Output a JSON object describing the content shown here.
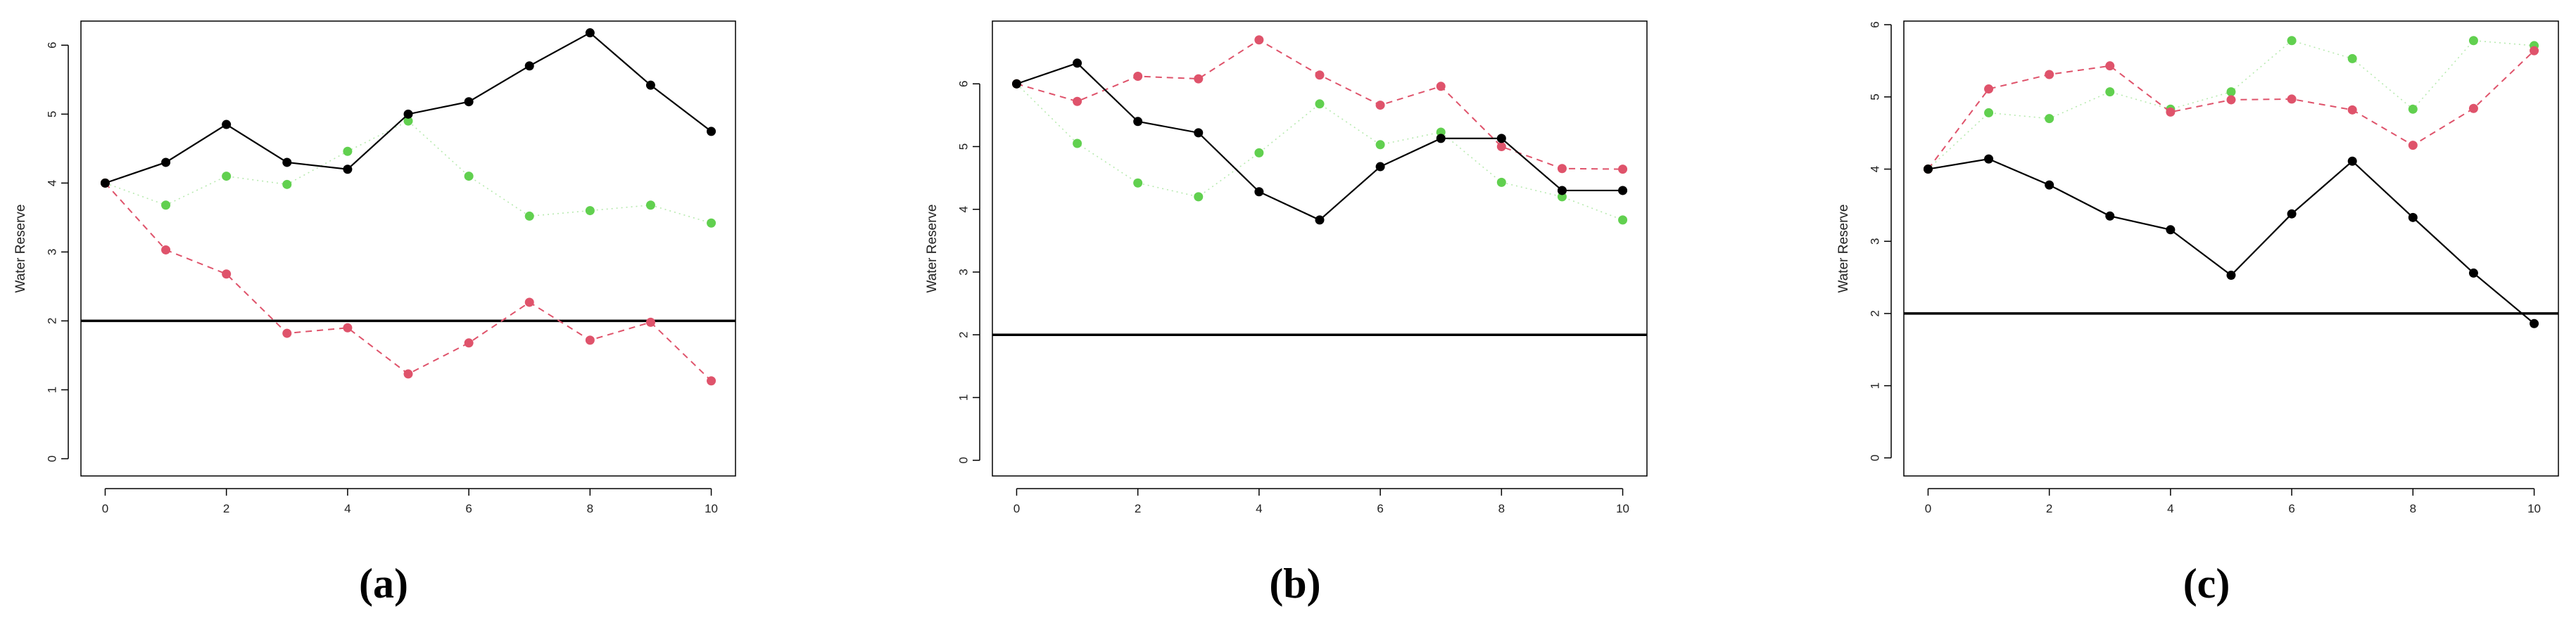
{
  "colors": {
    "black": "#000000",
    "red": "#df536b",
    "green": "#61d04f"
  },
  "chart_data": [
    {
      "type": "line",
      "caption": "(a)",
      "ylabel": "Water Reserve",
      "x": [
        0,
        1,
        2,
        3,
        4,
        5,
        6,
        7,
        8,
        9,
        10
      ],
      "xticks": [
        0,
        2,
        4,
        6,
        8,
        10
      ],
      "yticks": [
        0,
        1,
        2,
        3,
        4,
        5,
        6
      ],
      "xlim": [
        -0.4,
        10.4
      ],
      "ylim": [
        -0.25,
        6.35
      ],
      "hline": 2,
      "series": [
        {
          "color": "black",
          "style": "solid",
          "values": [
            4.0,
            4.3,
            4.85,
            4.3,
            4.2,
            5.0,
            5.18,
            5.7,
            6.18,
            5.42,
            4.75
          ]
        },
        {
          "color": "red",
          "style": "dashed",
          "values": [
            4.0,
            3.03,
            2.68,
            1.82,
            1.9,
            1.23,
            1.68,
            2.27,
            1.72,
            1.98,
            1.13
          ]
        },
        {
          "color": "green",
          "style": "dotted",
          "values": [
            4.0,
            3.68,
            4.1,
            3.98,
            4.46,
            4.9,
            4.1,
            3.52,
            3.6,
            3.68,
            3.42
          ]
        }
      ]
    },
    {
      "type": "line",
      "caption": "(b)",
      "ylabel": "Water Reserve",
      "x": [
        0,
        1,
        2,
        3,
        4,
        5,
        6,
        7,
        8,
        9,
        10
      ],
      "xticks": [
        0,
        2,
        4,
        6,
        8,
        10
      ],
      "yticks": [
        0,
        1,
        2,
        3,
        4,
        5,
        6
      ],
      "xlim": [
        -0.4,
        10.4
      ],
      "ylim": [
        -0.25,
        7.0
      ],
      "hline": 2,
      "series": [
        {
          "color": "black",
          "style": "solid",
          "values": [
            6.0,
            6.33,
            5.4,
            5.22,
            4.28,
            3.83,
            4.68,
            5.13,
            5.13,
            4.3,
            4.3
          ]
        },
        {
          "color": "red",
          "style": "dashed",
          "values": [
            6.0,
            5.72,
            6.12,
            6.08,
            6.7,
            6.14,
            5.66,
            5.96,
            5.0,
            4.65,
            4.64
          ]
        },
        {
          "color": "green",
          "style": "dotted",
          "values": [
            6.0,
            5.05,
            4.42,
            4.2,
            4.9,
            5.68,
            5.03,
            5.23,
            4.43,
            4.2,
            3.83
          ]
        }
      ]
    },
    {
      "type": "line",
      "caption": "(c)",
      "ylabel": "Water Reserve",
      "x": [
        0,
        1,
        2,
        3,
        4,
        5,
        6,
        7,
        8,
        9,
        10
      ],
      "xticks": [
        0,
        2,
        4,
        6,
        8,
        10
      ],
      "yticks": [
        0,
        1,
        2,
        3,
        4,
        5,
        6
      ],
      "xlim": [
        -0.4,
        10.4
      ],
      "ylim": [
        -0.25,
        6.05
      ],
      "hline": 2,
      "series": [
        {
          "color": "black",
          "style": "solid",
          "values": [
            4.0,
            4.14,
            3.78,
            3.35,
            3.16,
            2.53,
            3.38,
            4.11,
            3.33,
            2.56,
            1.86
          ]
        },
        {
          "color": "red",
          "style": "dashed",
          "values": [
            4.0,
            5.11,
            5.31,
            5.43,
            4.79,
            4.96,
            4.97,
            4.82,
            4.33,
            4.84,
            5.64
          ]
        },
        {
          "color": "green",
          "style": "dotted",
          "values": [
            4.0,
            4.78,
            4.7,
            5.07,
            4.83,
            5.07,
            5.78,
            5.53,
            4.83,
            5.78,
            5.71
          ]
        }
      ]
    }
  ]
}
